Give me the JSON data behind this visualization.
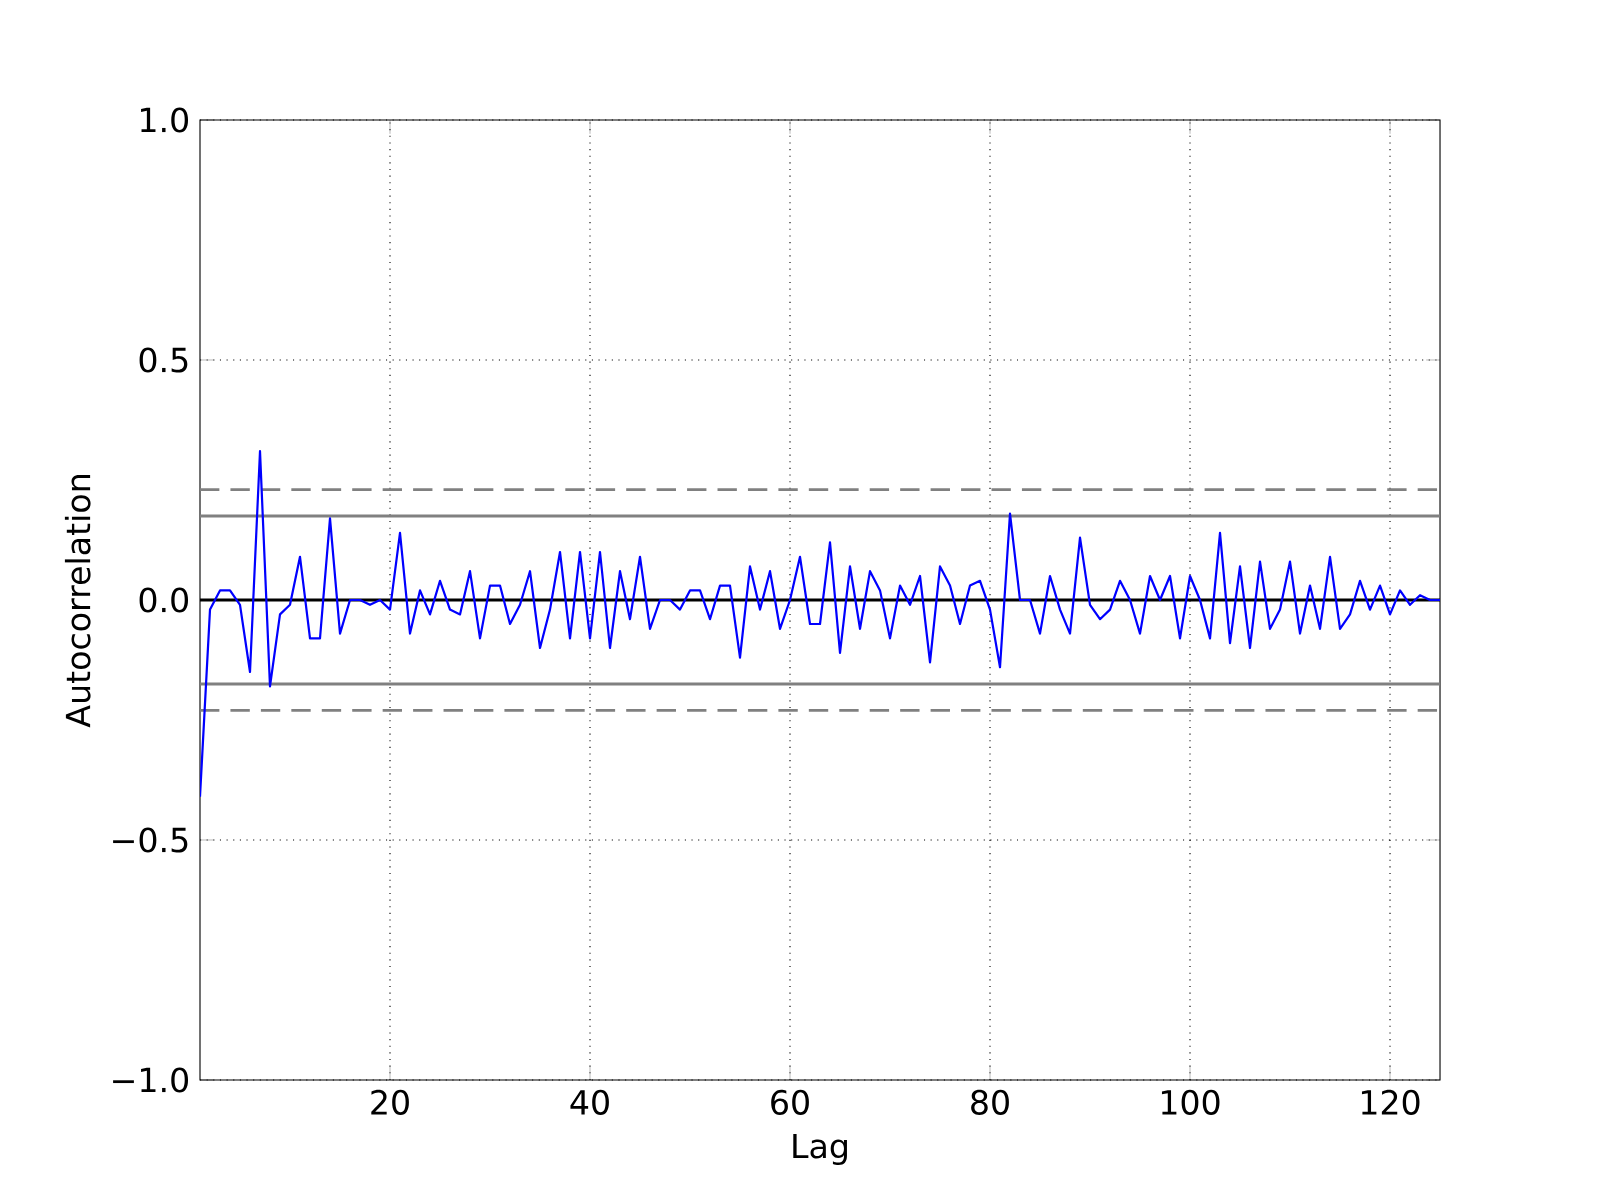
{
  "chart_data": {
    "type": "line",
    "xlabel": "Lag",
    "ylabel": "Autocorrelation",
    "x": [
      1,
      2,
      3,
      4,
      5,
      6,
      7,
      8,
      9,
      10,
      11,
      12,
      13,
      14,
      15,
      16,
      17,
      18,
      19,
      20,
      21,
      22,
      23,
      24,
      25,
      26,
      27,
      28,
      29,
      30,
      31,
      32,
      33,
      34,
      35,
      36,
      37,
      38,
      39,
      40,
      41,
      42,
      43,
      44,
      45,
      46,
      47,
      48,
      49,
      50,
      51,
      52,
      53,
      54,
      55,
      56,
      57,
      58,
      59,
      60,
      61,
      62,
      63,
      64,
      65,
      66,
      67,
      68,
      69,
      70,
      71,
      72,
      73,
      74,
      75,
      76,
      77,
      78,
      79,
      80,
      81,
      82,
      83,
      84,
      85,
      86,
      87,
      88,
      89,
      90,
      91,
      92,
      93,
      94,
      95,
      96,
      97,
      98,
      99,
      100,
      101,
      102,
      103,
      104,
      105,
      106,
      107,
      108,
      109,
      110,
      111,
      112,
      113,
      114,
      115,
      116,
      117,
      118,
      119,
      120,
      121,
      122,
      123,
      124,
      125
    ],
    "series": [
      {
        "color": "#0000ff",
        "values": [
          -0.41,
          -0.02,
          0.02,
          0.02,
          -0.01,
          -0.15,
          0.31,
          -0.18,
          -0.03,
          -0.01,
          0.09,
          -0.08,
          -0.08,
          0.17,
          -0.07,
          0.0,
          0.0,
          -0.01,
          0.0,
          -0.02,
          0.14,
          -0.07,
          0.02,
          -0.03,
          0.04,
          -0.02,
          -0.03,
          0.06,
          -0.08,
          0.03,
          0.03,
          -0.05,
          -0.01,
          0.06,
          -0.1,
          -0.02,
          0.1,
          -0.08,
          0.1,
          -0.08,
          0.1,
          -0.1,
          0.06,
          -0.04,
          0.09,
          -0.06,
          0.0,
          0.0,
          -0.02,
          0.02,
          0.02,
          -0.04,
          0.03,
          0.03,
          -0.12,
          0.07,
          -0.02,
          0.06,
          -0.06,
          0.0,
          0.09,
          -0.05,
          -0.05,
          0.12,
          -0.11,
          0.07,
          -0.06,
          0.06,
          0.02,
          -0.08,
          0.03,
          -0.01,
          0.05,
          -0.13,
          0.07,
          0.03,
          -0.05,
          0.03,
          0.04,
          -0.02,
          -0.14,
          0.18,
          0.0,
          0.0,
          -0.07,
          0.05,
          -0.02,
          -0.07,
          0.13,
          -0.01,
          -0.04,
          -0.02,
          0.04,
          0.0,
          -0.07,
          0.05,
          0.0,
          0.05,
          -0.08,
          0.05,
          0.0,
          -0.08,
          0.14,
          -0.09,
          0.07,
          -0.1,
          0.08,
          -0.06,
          -0.02,
          0.08,
          -0.07,
          0.03,
          -0.06,
          0.09,
          -0.06,
          -0.03,
          0.04,
          -0.02,
          0.03,
          -0.03,
          0.02,
          -0.01,
          0.01,
          0.0,
          0.0
        ]
      }
    ],
    "xlim": [
      1,
      125
    ],
    "ylim": [
      -1,
      1
    ],
    "xticks": [
      20,
      40,
      60,
      80,
      100,
      120
    ],
    "yticks": [
      {
        "value": -1,
        "label": "−1.0"
      },
      {
        "value": -0.5,
        "label": "−0.5"
      },
      {
        "value": 0,
        "label": "0.0"
      },
      {
        "value": 0.5,
        "label": "0.5"
      },
      {
        "value": 1,
        "label": "1.0"
      }
    ],
    "ref_lines": [
      {
        "axis": "y",
        "value": 0.175,
        "color": "#808080",
        "line_style": "solid"
      },
      {
        "axis": "y",
        "value": 0.23,
        "color": "#808080",
        "line_style": "dashed"
      },
      {
        "axis": "y",
        "value": 0,
        "color": "#000000",
        "line_style": "solid"
      },
      {
        "axis": "y",
        "value": -0.175,
        "color": "#808080",
        "line_style": "solid"
      },
      {
        "axis": "y",
        "value": -0.23,
        "color": "#808080",
        "line_style": "dashed"
      }
    ],
    "grid": true,
    "marker": "none",
    "line_style": "solid"
  }
}
